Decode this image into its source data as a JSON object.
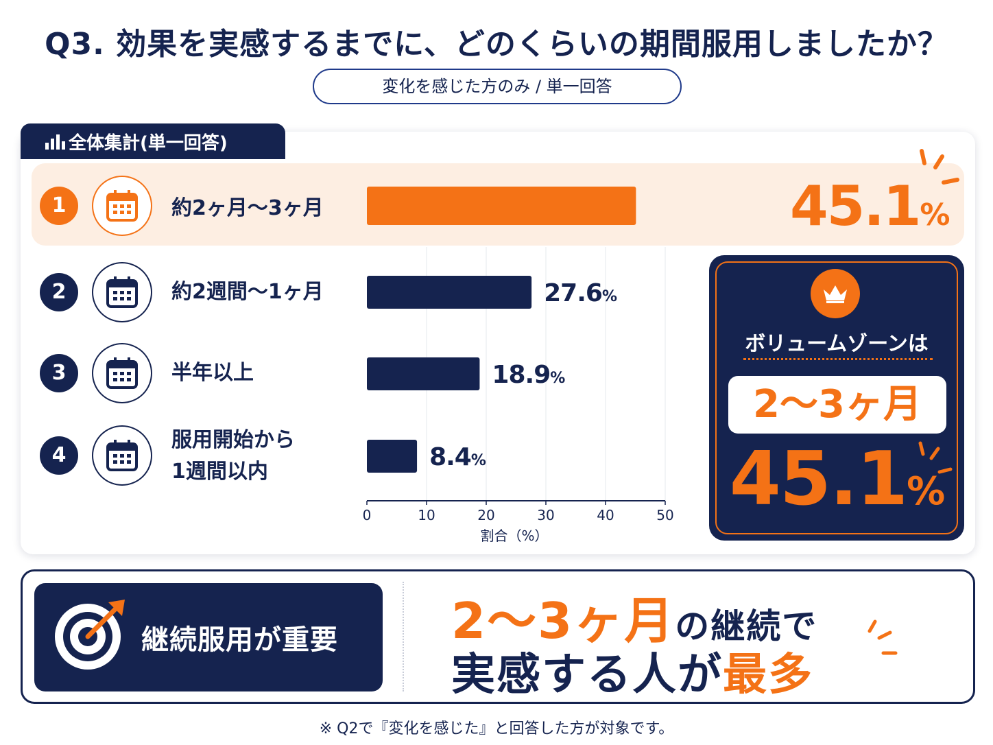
{
  "title": "Q3. 効果を実感するまでに、どのくらいの期間服用しましたか？",
  "subtitle": "変化を感じた方のみ / 単一回答",
  "panel_tab": {
    "label": "全体集計",
    "sub": "(単一回答)"
  },
  "chart_data": {
    "type": "bar",
    "orientation": "horizontal",
    "categories": [
      "約2ヶ月〜3ヶ月",
      "約2週間〜1ヶ月",
      "半年以上",
      "服用開始から\n1週間以内"
    ],
    "values": [
      45.1,
      27.6,
      18.9,
      8.4
    ],
    "value_labels": [
      "45.1",
      "27.6",
      "18.9",
      "8.4"
    ],
    "unit": "%",
    "xlabel": "割合（%）",
    "xlim": [
      0,
      50
    ],
    "ticks": [
      "0",
      "10",
      "20",
      "30",
      "40",
      "50"
    ],
    "highlight_index": 0,
    "colors": {
      "highlight": "#f47216",
      "default": "#15234f"
    }
  },
  "rows": [
    {
      "rank": "1",
      "label_lines": [
        "約2ヶ月〜3ヶ月"
      ]
    },
    {
      "rank": "2",
      "label_lines": [
        "約2週間〜1ヶ月"
      ]
    },
    {
      "rank": "3",
      "label_lines": [
        "半年以上"
      ]
    },
    {
      "rank": "4",
      "label_lines": [
        "服用開始から",
        "1週間以内"
      ]
    }
  ],
  "volume_zone": {
    "title": "ボリュームゾーンは",
    "range": "2〜3ヶ月",
    "pct": "45.1",
    "unit": "%"
  },
  "banner": {
    "left": "継続服用が重要",
    "line1_accent": "2〜3ヶ月",
    "line1_rest": "の継続で",
    "line2_main": "実感する人が",
    "line2_accent": "最多"
  },
  "footnote": "※ Q2で『変化を感じた』と回答した方が対象です。",
  "colors": {
    "navy": "#15234f",
    "orange": "#f47216",
    "highlight_bg": "#fdeee2"
  }
}
